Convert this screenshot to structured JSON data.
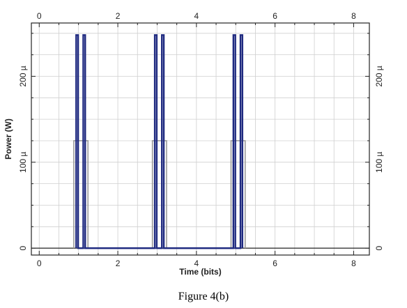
{
  "caption": "Figure 4(b)",
  "chart_data": {
    "type": "line",
    "title": "",
    "xlabel": "Time (bits)",
    "ylabel": "Power (W)",
    "xlim": [
      -0.2,
      8.4
    ],
    "ylim": [
      -8,
      262
    ],
    "x_unit_scale": "bits",
    "y_unit": "µW",
    "x_ticks": [
      0,
      2,
      4,
      6,
      8
    ],
    "y_ticks": [
      0,
      100,
      200
    ],
    "x_tick_labels": [
      "0",
      "2",
      "4",
      "6",
      "8"
    ],
    "y_tick_labels": [
      "0",
      "100 µ",
      "200 µ"
    ],
    "grid": true,
    "mirrored_axes": true,
    "series": [
      {
        "color": "#1f2a80",
        "points": [
          [
            0.94,
            0
          ],
          [
            0.94,
            248
          ],
          [
            0.99,
            248
          ],
          [
            0.99,
            0
          ],
          [
            1.12,
            0
          ],
          [
            1.12,
            248
          ],
          [
            1.17,
            248
          ],
          [
            1.17,
            0
          ],
          [
            2.94,
            0
          ],
          [
            2.94,
            248
          ],
          [
            2.99,
            248
          ],
          [
            2.99,
            0
          ],
          [
            3.12,
            0
          ],
          [
            3.12,
            248
          ],
          [
            3.17,
            248
          ],
          [
            3.17,
            0
          ],
          [
            4.94,
            0
          ],
          [
            4.94,
            248
          ],
          [
            4.99,
            248
          ],
          [
            4.99,
            0
          ],
          [
            5.12,
            0
          ],
          [
            5.12,
            248
          ],
          [
            5.17,
            248
          ],
          [
            5.17,
            0
          ]
        ]
      },
      {
        "color": "#9a9a9a",
        "points": [
          [
            0.88,
            0
          ],
          [
            0.88,
            125
          ],
          [
            1.24,
            125
          ],
          [
            1.24,
            0
          ],
          [
            2.88,
            0
          ],
          [
            2.88,
            125
          ],
          [
            3.24,
            125
          ],
          [
            3.24,
            0
          ],
          [
            4.88,
            0
          ],
          [
            4.88,
            125
          ],
          [
            5.24,
            125
          ],
          [
            5.24,
            0
          ]
        ]
      }
    ]
  }
}
